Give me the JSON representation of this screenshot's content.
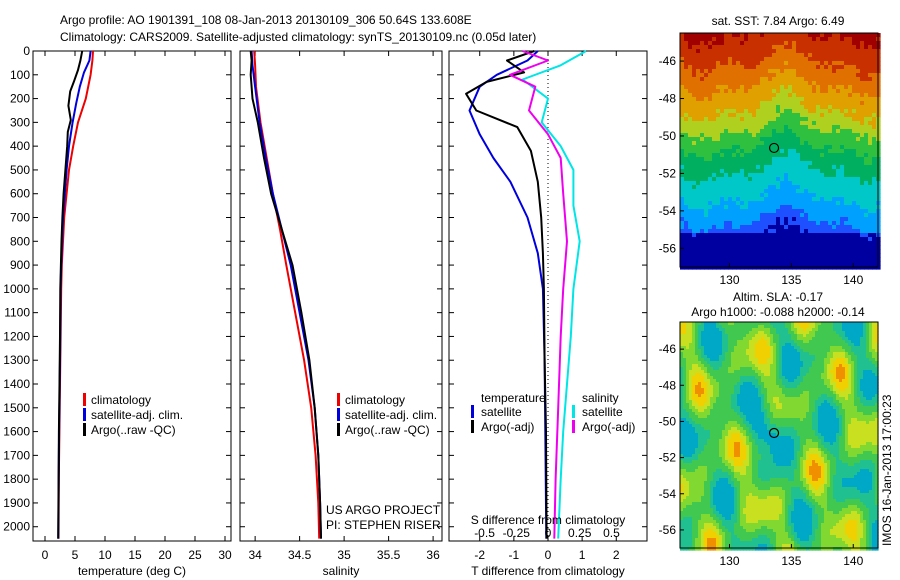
{
  "header": {
    "line1": "Argo profile: AO 1901391_108 08-Jan-2013 20130109_306 50.64S 133.608E",
    "line2": "Climatology: CARS2009. Satellite-adjusted climatology: synTS_20130109.nc (0.05d later)"
  },
  "project": {
    "line1": "US ARGO PROJECT",
    "line2": "PI: STEPHEN RISER"
  },
  "timestamp": "IMOS 16-Jan-2013 17:00:23",
  "colors": {
    "climatology": "#ee0000",
    "satellite": "#0000dd",
    "argo": "#000000",
    "sat_salinity": "#00e5e5",
    "argo_salinity": "#ee00ee"
  },
  "chart_data": [
    {
      "id": "temperature",
      "type": "line",
      "xlabel": "temperature (deg C)",
      "ylabel": "",
      "xlim": [
        -2,
        31
      ],
      "ylim": [
        2060,
        0
      ],
      "xticks": [
        0,
        5,
        10,
        15,
        20,
        25,
        30
      ],
      "yticks": [
        0,
        100,
        200,
        300,
        400,
        500,
        600,
        700,
        800,
        900,
        1000,
        1100,
        1200,
        1300,
        1400,
        1500,
        1600,
        1700,
        1800,
        1900,
        2000
      ],
      "legend": [
        "climatology",
        "satellite-adj. clim.",
        "Argo(..raw -QC)"
      ],
      "series": [
        {
          "name": "climatology",
          "color": "#ee0000",
          "points": [
            [
              8.0,
              0
            ],
            [
              7.9,
              40
            ],
            [
              7.6,
              100
            ],
            [
              6.8,
              200
            ],
            [
              5.5,
              300
            ],
            [
              4.7,
              400
            ],
            [
              4.0,
              500
            ],
            [
              3.6,
              600
            ],
            [
              3.2,
              700
            ],
            [
              3.0,
              800
            ],
            [
              2.8,
              900
            ],
            [
              2.7,
              1000
            ],
            [
              2.6,
              1200
            ],
            [
              2.5,
              1400
            ],
            [
              2.4,
              1600
            ],
            [
              2.3,
              1800
            ],
            [
              2.25,
              2050
            ]
          ]
        },
        {
          "name": "satellite-adj. clim.",
          "color": "#0000dd",
          "points": [
            [
              7.6,
              0
            ],
            [
              7.4,
              40
            ],
            [
              6.5,
              90
            ],
            [
              5.8,
              150
            ],
            [
              5.2,
              220
            ],
            [
              4.6,
              300
            ],
            [
              4.0,
              400
            ],
            [
              3.6,
              500
            ],
            [
              3.3,
              600
            ],
            [
              3.0,
              700
            ],
            [
              2.85,
              800
            ],
            [
              2.7,
              900
            ],
            [
              2.6,
              1000
            ],
            [
              2.55,
              1200
            ],
            [
              2.45,
              1400
            ],
            [
              2.35,
              1600
            ],
            [
              2.28,
              1800
            ],
            [
              2.22,
              2050
            ]
          ]
        },
        {
          "name": "Argo(..raw -QC)",
          "color": "#000000",
          "points": [
            [
              6.2,
              0
            ],
            [
              5.9,
              40
            ],
            [
              5.5,
              80
            ],
            [
              4.8,
              130
            ],
            [
              4.2,
              170
            ],
            [
              3.9,
              230
            ],
            [
              4.3,
              290
            ],
            [
              3.8,
              340
            ],
            [
              3.7,
              400
            ],
            [
              3.4,
              500
            ],
            [
              3.1,
              600
            ],
            [
              2.9,
              700
            ],
            [
              2.75,
              800
            ],
            [
              2.65,
              900
            ],
            [
              2.55,
              1000
            ],
            [
              2.5,
              1200
            ],
            [
              2.42,
              1400
            ],
            [
              2.32,
              1600
            ],
            [
              2.26,
              1800
            ],
            [
              2.2,
              2050
            ]
          ]
        }
      ]
    },
    {
      "id": "salinity",
      "type": "line",
      "xlabel": "salinity",
      "ylabel": "",
      "xlim": [
        33.83,
        36.1
      ],
      "ylim": [
        2060,
        0
      ],
      "xticks": [
        34,
        34.5,
        35,
        35.5,
        36
      ],
      "xtick_labels": [
        "34",
        "34.5",
        "35",
        "35.5",
        "36"
      ],
      "legend": [
        "climatology",
        "satellite-adj. clim.",
        "Argo(..raw -QC)"
      ],
      "series": [
        {
          "name": "climatology",
          "color": "#ee0000",
          "points": [
            [
              33.99,
              0
            ],
            [
              34.0,
              60
            ],
            [
              34.01,
              150
            ],
            [
              34.06,
              300
            ],
            [
              34.13,
              450
            ],
            [
              34.2,
              600
            ],
            [
              34.28,
              750
            ],
            [
              34.35,
              900
            ],
            [
              34.45,
              1100
            ],
            [
              34.55,
              1300
            ],
            [
              34.63,
              1500
            ],
            [
              34.68,
              1700
            ],
            [
              34.71,
              1900
            ],
            [
              34.72,
              2050
            ]
          ]
        },
        {
          "name": "satellite-adj. clim.",
          "color": "#0000dd",
          "points": [
            [
              33.96,
              0
            ],
            [
              33.97,
              60
            ],
            [
              34.0,
              150
            ],
            [
              34.05,
              300
            ],
            [
              34.12,
              450
            ],
            [
              34.2,
              600
            ],
            [
              34.3,
              750
            ],
            [
              34.4,
              900
            ],
            [
              34.5,
              1100
            ],
            [
              34.6,
              1300
            ],
            [
              34.67,
              1500
            ],
            [
              34.71,
              1700
            ],
            [
              34.73,
              1900
            ],
            [
              34.74,
              2050
            ]
          ]
        },
        {
          "name": "Argo(..raw -QC)",
          "color": "#000000",
          "points": [
            [
              33.95,
              0
            ],
            [
              33.96,
              40
            ],
            [
              33.95,
              100
            ],
            [
              33.97,
              200
            ],
            [
              34.03,
              300
            ],
            [
              34.1,
              450
            ],
            [
              34.18,
              600
            ],
            [
              34.3,
              750
            ],
            [
              34.42,
              900
            ],
            [
              34.52,
              1100
            ],
            [
              34.61,
              1300
            ],
            [
              34.67,
              1500
            ],
            [
              34.71,
              1700
            ],
            [
              34.73,
              1900
            ],
            [
              34.74,
              2050
            ]
          ]
        }
      ]
    },
    {
      "id": "difference",
      "type": "line",
      "xlabel": "T difference from climatology",
      "x2label": "S difference from climatology",
      "ylabel": "",
      "xlim": [
        -2.9,
        2.9
      ],
      "ylim": [
        2060,
        0
      ],
      "xticks": [
        -2,
        -1,
        0,
        1,
        2
      ],
      "x2ticks": [
        -0.5,
        -0.25,
        0,
        0.25,
        0.5
      ],
      "x2tick_labels": [
        "-0.5",
        "-0.25",
        "0",
        "0.25",
        "0.5"
      ],
      "legend_temperature": [
        "temperature",
        "satellite",
        "Argo(-adj)"
      ],
      "legend_salinity": [
        "salinity",
        "satellite",
        "Argo(-adj)"
      ],
      "series": [
        {
          "name": "satellite",
          "kind": "temperature",
          "color": "#0000dd",
          "points": [
            [
              -0.3,
              0
            ],
            [
              -0.6,
              40
            ],
            [
              -1.5,
              100
            ],
            [
              -2.0,
              150
            ],
            [
              -2.3,
              250
            ],
            [
              -2.0,
              350
            ],
            [
              -1.6,
              450
            ],
            [
              -1.1,
              550
            ],
            [
              -0.6,
              700
            ],
            [
              -0.3,
              850
            ],
            [
              -0.15,
              1000
            ],
            [
              -0.1,
              1300
            ],
            [
              -0.08,
              1600
            ],
            [
              -0.05,
              2050
            ]
          ]
        },
        {
          "name": "Argo(-adj)",
          "kind": "temperature",
          "color": "#000000",
          "points": [
            [
              -0.4,
              0
            ],
            [
              -1.2,
              40
            ],
            [
              -0.7,
              90
            ],
            [
              -1.8,
              130
            ],
            [
              -2.4,
              180
            ],
            [
              -2.1,
              250
            ],
            [
              -0.9,
              320
            ],
            [
              -0.5,
              420
            ],
            [
              -0.3,
              550
            ],
            [
              -0.2,
              700
            ],
            [
              -0.15,
              850
            ],
            [
              -0.12,
              1000
            ],
            [
              -0.1,
              1300
            ],
            [
              -0.06,
              1600
            ],
            [
              -0.04,
              2050
            ]
          ]
        },
        {
          "name": "satellite",
          "kind": "salinity",
          "color": "#00e5e5",
          "points": [
            [
              0.3,
              0
            ],
            [
              0.1,
              60
            ],
            [
              -0.2,
              120
            ],
            [
              0.0,
              200
            ],
            [
              -0.05,
              300
            ],
            [
              0.1,
              400
            ],
            [
              0.2,
              500
            ],
            [
              0.2,
              650
            ],
            [
              0.25,
              800
            ],
            [
              0.2,
              1000
            ],
            [
              0.18,
              1200
            ],
            [
              0.15,
              1400
            ],
            [
              0.12,
              1600
            ],
            [
              0.1,
              1800
            ],
            [
              0.08,
              2050
            ]
          ]
        },
        {
          "name": "Argo(-adj)",
          "kind": "salinity",
          "color": "#ee00ee",
          "points": [
            [
              -0.2,
              0
            ],
            [
              0.0,
              40
            ],
            [
              -0.3,
              100
            ],
            [
              -0.1,
              150
            ],
            [
              -0.15,
              250
            ],
            [
              0.0,
              350
            ],
            [
              0.1,
              450
            ],
            [
              0.12,
              600
            ],
            [
              0.15,
              800
            ],
            [
              0.12,
              1000
            ],
            [
              0.1,
              1200
            ],
            [
              0.08,
              1500
            ],
            [
              0.06,
              1800
            ],
            [
              0.05,
              2050
            ]
          ]
        }
      ]
    },
    {
      "id": "sst_map",
      "type": "heatmap",
      "title": "sat. SST: 7.84 Argo: 6.49",
      "xlim": [
        126,
        142
      ],
      "ylim": [
        -57,
        -44.5
      ],
      "xticks": [
        130,
        135,
        140
      ],
      "yticks": [
        -46,
        -48,
        -50,
        -52,
        -54,
        -56
      ],
      "marker": [
        133.6,
        -50.64
      ]
    },
    {
      "id": "sla_map",
      "type": "heatmap",
      "title": "Altim. SLA: -0.17",
      "subtitle": "Argo h1000: -0.088 h2000: -0.14",
      "xlim": [
        126,
        142
      ],
      "ylim": [
        -57,
        -44.5
      ],
      "xticks": [
        130,
        135,
        140
      ],
      "yticks": [
        -46,
        -48,
        -50,
        -52,
        -54,
        -56
      ],
      "marker": [
        133.6,
        -50.64
      ]
    }
  ]
}
